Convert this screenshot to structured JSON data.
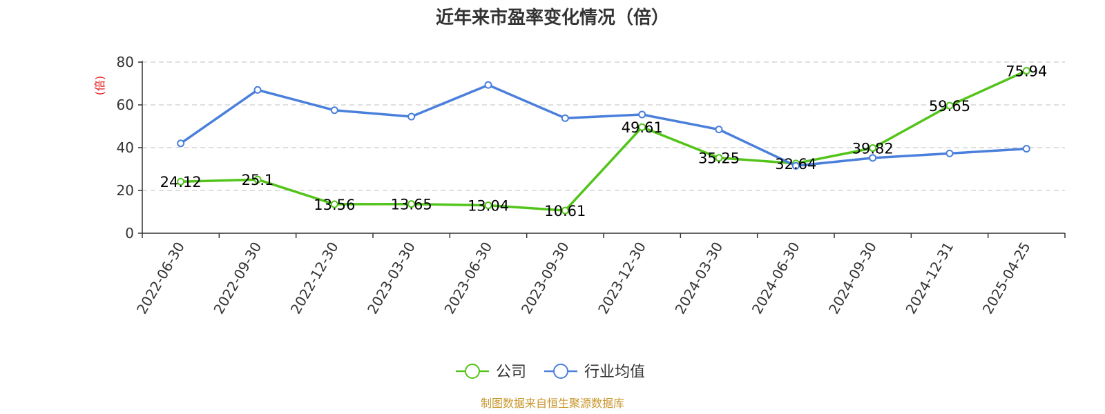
{
  "chart_data": {
    "type": "line",
    "title": "近年来市盈率变化情况（倍）",
    "ylabel": "(倍)",
    "ylim": [
      0,
      80
    ],
    "yticks": [
      0,
      20,
      40,
      60,
      80
    ],
    "grid": true,
    "legend_position": "bottom",
    "categories": [
      "2022-06-30",
      "2022-09-30",
      "2022-12-30",
      "2023-03-30",
      "2023-06-30",
      "2023-09-30",
      "2023-12-30",
      "2024-03-30",
      "2024-06-30",
      "2024-09-30",
      "2024-12-31",
      "2025-04-25"
    ],
    "series": [
      {
        "name": "公司",
        "color": "#52c41a",
        "values": [
          24.12,
          25.1,
          13.56,
          13.65,
          13.04,
          10.61,
          49.61,
          35.25,
          32.64,
          39.82,
          59.65,
          75.94
        ],
        "labels": [
          "24.12",
          "25.1",
          "13.56",
          "13.65",
          "13.04",
          "10.61",
          "49.61",
          "35.25",
          "32.64",
          "39.82",
          "59.65",
          "75.94"
        ]
      },
      {
        "name": "行业均值",
        "color": "#4a7fdb",
        "values": [
          42,
          67,
          57.5,
          54.5,
          69.3,
          53.8,
          55.5,
          48.5,
          31.5,
          35.2,
          37.3,
          39.5
        ]
      }
    ],
    "source": "制图数据来自恒生聚源数据库"
  }
}
